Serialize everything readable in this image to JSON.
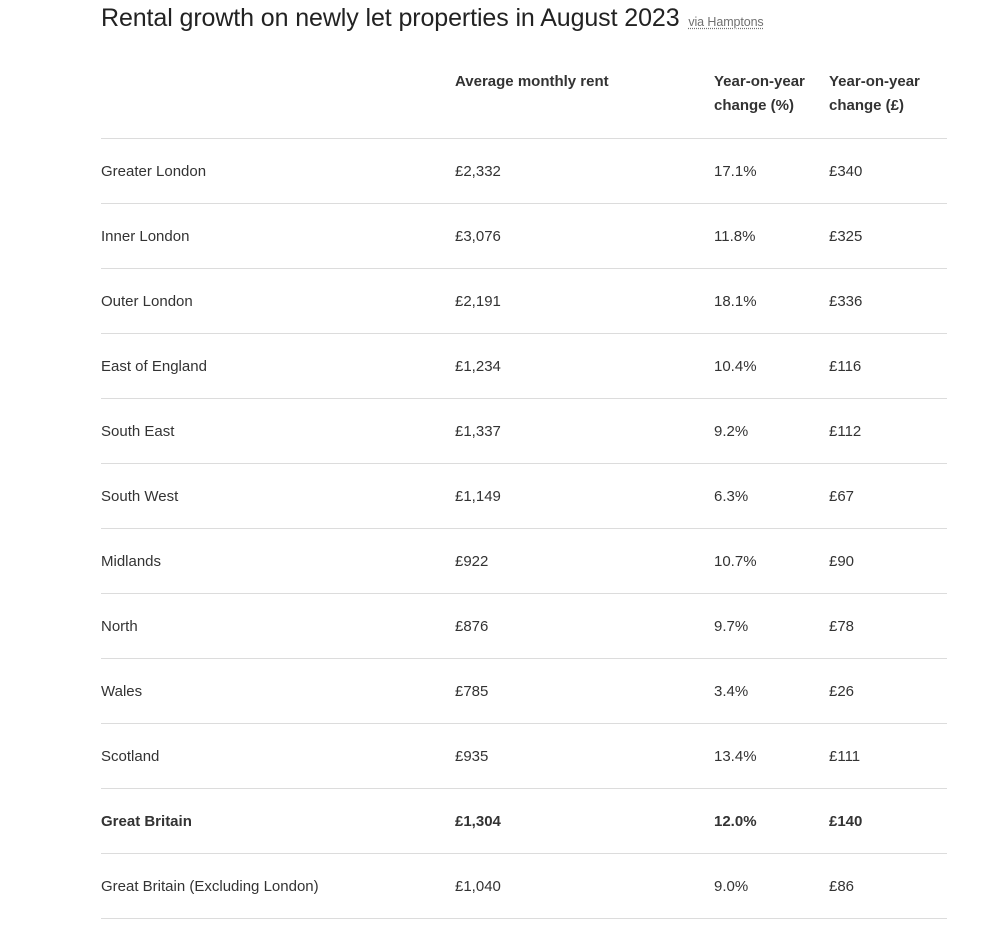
{
  "title": "Rental growth on newly let properties in August 2023",
  "source_link": "via Hamptons",
  "columns": [
    "",
    "Average monthly rent",
    "Year-on-year change (%)",
    "Year-on-year change (£)"
  ],
  "rows": [
    {
      "region": "Greater London",
      "rent": "£2,332",
      "pct": "17.1%",
      "gbp": "£340"
    },
    {
      "region": "Inner London",
      "rent": "£3,076",
      "pct": "11.8%",
      "gbp": "£325"
    },
    {
      "region": "Outer London",
      "rent": "£2,191",
      "pct": "18.1%",
      "gbp": "£336"
    },
    {
      "region": "East of England",
      "rent": "£1,234",
      "pct": "10.4%",
      "gbp": "£116"
    },
    {
      "region": "South East",
      "rent": "£1,337",
      "pct": "9.2%",
      "gbp": "£112"
    },
    {
      "region": "South West",
      "rent": "£1,149",
      "pct": "6.3%",
      "gbp": "£67"
    },
    {
      "region": "Midlands",
      "rent": "£922",
      "pct": "10.7%",
      "gbp": "£90"
    },
    {
      "region": "North",
      "rent": "£876",
      "pct": "9.7%",
      "gbp": "£78"
    },
    {
      "region": "Wales",
      "rent": "£785",
      "pct": "3.4%",
      "gbp": "£26"
    },
    {
      "region": "Scotland",
      "rent": "£935",
      "pct": "13.4%",
      "gbp": "£111"
    },
    {
      "region": "Great Britain",
      "rent": "£1,304",
      "pct": "12.0%",
      "gbp": "£140"
    },
    {
      "region": "Great Britain (Excluding London)",
      "rent": "£1,040",
      "pct": "9.0%",
      "gbp": "£86"
    }
  ],
  "colors": {
    "text": "#333333",
    "rule": "#dcdcdc",
    "link": "#707070"
  }
}
